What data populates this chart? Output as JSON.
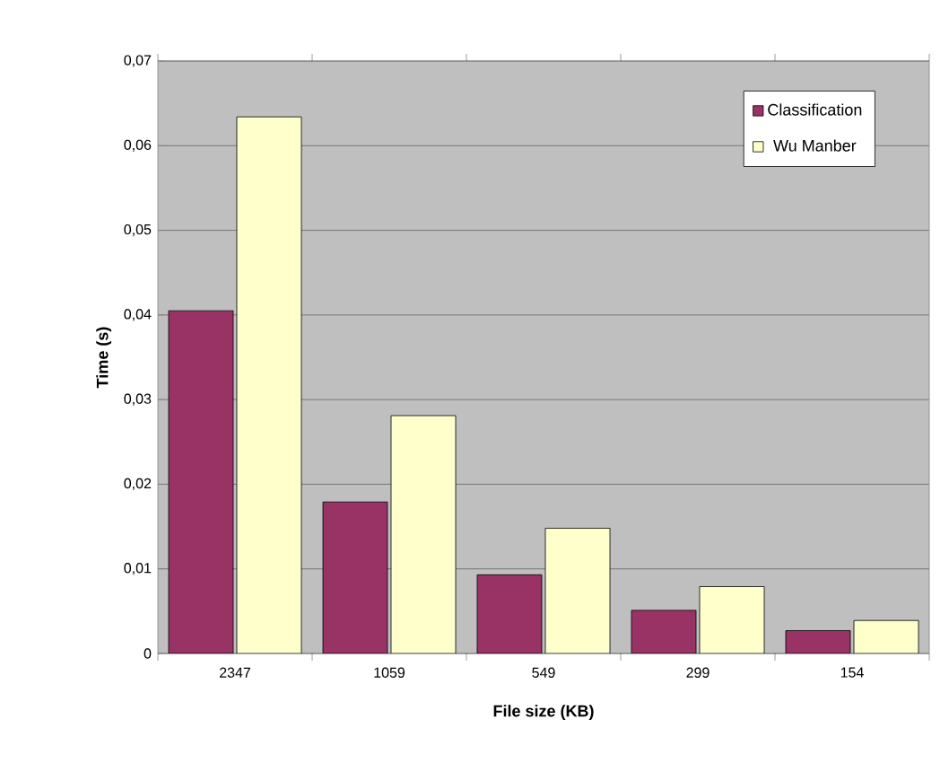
{
  "chart_data": {
    "type": "bar",
    "xlabel": "File size (KB)",
    "ylabel": "Time (s)",
    "categories": [
      "2347",
      "1059",
      "549",
      "299",
      "154"
    ],
    "series": [
      {
        "name": "Classification",
        "color": "#993366",
        "values": [
          0.0405,
          0.0179,
          0.0093,
          0.0051,
          0.0027
        ]
      },
      {
        "name": "Wu Manber",
        "color": "#ffffcc",
        "values": [
          0.0634,
          0.0281,
          0.0148,
          0.0079,
          0.0039
        ]
      }
    ],
    "ylim": [
      0,
      0.07
    ],
    "yticks": [
      0,
      {
        "value": 0.01,
        "label": "0,01"
      },
      {
        "value": 0.02,
        "label": "0,02"
      },
      {
        "value": 0.03,
        "label": "0,03"
      },
      {
        "value": 0.04,
        "label": "0,04"
      },
      {
        "value": 0.05,
        "label": "0,05"
      },
      {
        "value": 0.06,
        "label": "0,06"
      },
      {
        "value": 0.07,
        "label": "0,07"
      }
    ],
    "grid": "y",
    "legend": "top right"
  }
}
